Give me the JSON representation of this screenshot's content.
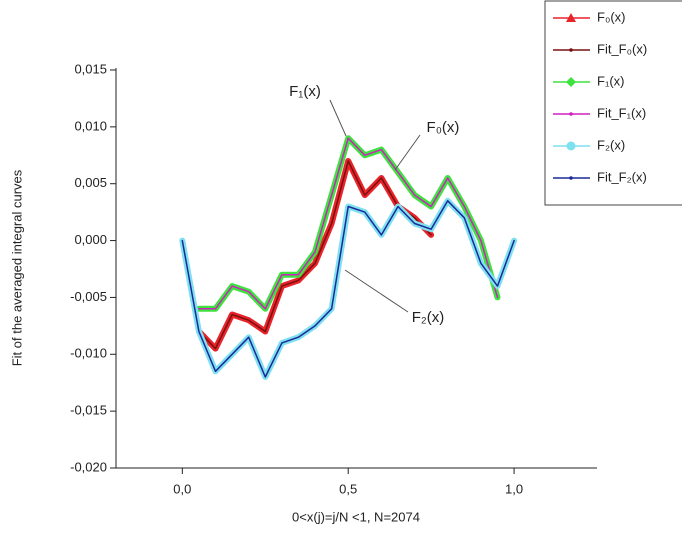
{
  "chart_data": {
    "type": "line",
    "x_label": "0<x(j)=j/N <1, N=2074",
    "y_label": "Fit of the averaged integral curves",
    "annotations": [
      "F₁(x)",
      "F₀(x)",
      "F₂(x)"
    ],
    "x": [
      0,
      0.05,
      0.1,
      0.15,
      0.2,
      0.25,
      0.3,
      0.35,
      0.4,
      0.45,
      0.5,
      0.55,
      0.6,
      0.65,
      0.7,
      0.75,
      0.8,
      0.85,
      0.9,
      0.95,
      1.0
    ],
    "xlim": [
      -0.2,
      1.25
    ],
    "xticks": [
      {
        "value": 0,
        "label": "0,0"
      },
      {
        "value": 0.5,
        "label": "0,5"
      },
      {
        "value": 1,
        "label": "1,0"
      }
    ],
    "ylim": [
      -0.02,
      0.015
    ],
    "yticks": [
      {
        "value": -0.02,
        "label": "-0,020"
      },
      {
        "value": -0.015,
        "label": "-0,015"
      },
      {
        "value": -0.01,
        "label": "-0,010"
      },
      {
        "value": -0.005,
        "label": "-0,005"
      },
      {
        "value": 0,
        "label": "0,000"
      },
      {
        "value": 0.005,
        "label": "0,005"
      },
      {
        "value": 0.01,
        "label": "0,010"
      },
      {
        "value": 0.015,
        "label": "0,015"
      }
    ],
    "series": [
      {
        "name": "F₀(x)",
        "color": "#e8232a",
        "marker": "triangle",
        "width": 6,
        "values": [
          null,
          -0.008,
          -0.0095,
          -0.0065,
          -0.007,
          -0.008,
          -0.004,
          -0.0035,
          -0.002,
          0.0015,
          0.007,
          0.004,
          0.0055,
          0.003,
          0.002,
          0.0005,
          null,
          null,
          null,
          null,
          null
        ]
      },
      {
        "name": "Fit_F₀(x)",
        "color": "#7a1010",
        "marker": "dot",
        "width": 1.5,
        "values": [
          null,
          -0.008,
          -0.0095,
          -0.0065,
          -0.007,
          -0.008,
          -0.004,
          -0.0035,
          -0.002,
          0.0015,
          0.007,
          0.004,
          0.0055,
          0.003,
          0.002,
          0.0005,
          null,
          null,
          null,
          null,
          null
        ]
      },
      {
        "name": "F₁(x)",
        "color": "#3ee23e",
        "marker": "diamond",
        "width": 6,
        "values": [
          null,
          -0.006,
          -0.006,
          -0.004,
          -0.0045,
          -0.006,
          -0.003,
          -0.003,
          -0.001,
          0.004,
          0.009,
          0.0075,
          0.008,
          0.006,
          0.004,
          0.003,
          0.0055,
          0.003,
          0.0,
          -0.005,
          null
        ]
      },
      {
        "name": "Fit_F₁(x)",
        "color": "#d020c0",
        "marker": "dot",
        "width": 1.5,
        "values": [
          null,
          -0.006,
          -0.006,
          -0.004,
          -0.0045,
          -0.006,
          -0.003,
          -0.003,
          -0.001,
          0.004,
          0.009,
          0.0075,
          0.008,
          0.006,
          0.004,
          0.003,
          0.0055,
          0.003,
          0.0,
          -0.005,
          null
        ]
      },
      {
        "name": "F₂(x)",
        "color": "#7fe0f0",
        "marker": "circle",
        "width": 6,
        "values": [
          0.0,
          -0.008,
          -0.0115,
          -0.01,
          -0.0085,
          -0.012,
          -0.009,
          -0.0085,
          -0.0075,
          -0.006,
          0.003,
          0.0025,
          0.0005,
          0.003,
          0.0015,
          0.001,
          0.0035,
          0.002,
          -0.002,
          -0.004,
          0.0
        ]
      },
      {
        "name": "Fit_F₂(x)",
        "color": "#1a2a9a",
        "marker": "dot",
        "width": 1.5,
        "values": [
          0.0,
          -0.008,
          -0.0115,
          -0.01,
          -0.0085,
          -0.012,
          -0.009,
          -0.0085,
          -0.0075,
          -0.006,
          0.003,
          0.0025,
          0.0005,
          0.003,
          0.0015,
          0.001,
          0.0035,
          0.002,
          -0.002,
          -0.004,
          0.0
        ]
      }
    ]
  }
}
